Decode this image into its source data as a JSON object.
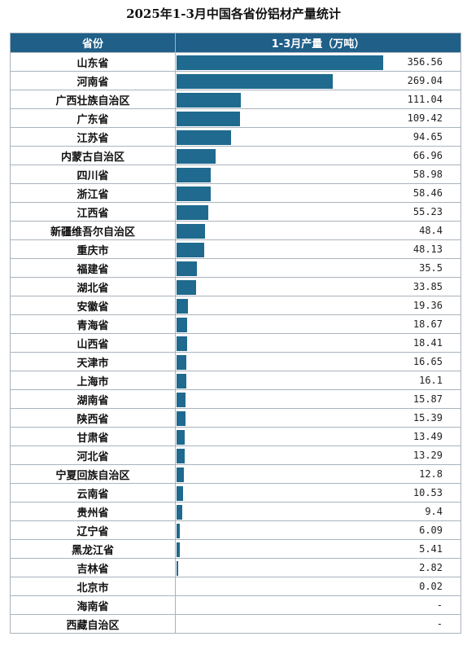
{
  "chart_data": {
    "type": "bar",
    "title": "2025年1-3月中国各省份铝材产量统计",
    "columns": [
      "省份",
      "1-3月产量（万吨）"
    ],
    "xlim": [
      0,
      356.56
    ],
    "categories": [
      "山东省",
      "河南省",
      "广西壮族自治区",
      "广东省",
      "江苏省",
      "内蒙古自治区",
      "四川省",
      "浙江省",
      "江西省",
      "新疆维吾尔自治区",
      "重庆市",
      "福建省",
      "湖北省",
      "安徽省",
      "青海省",
      "山西省",
      "天津市",
      "上海市",
      "湖南省",
      "陕西省",
      "甘肃省",
      "河北省",
      "宁夏回族自治区",
      "云南省",
      "贵州省",
      "辽宁省",
      "黑龙江省",
      "吉林省",
      "北京市",
      "海南省",
      "西藏自治区"
    ],
    "values": [
      356.56,
      269.04,
      111.04,
      109.42,
      94.65,
      66.96,
      58.98,
      58.46,
      55.23,
      48.4,
      48.13,
      35.5,
      33.85,
      19.36,
      18.67,
      18.41,
      16.65,
      16.1,
      15.87,
      15.39,
      13.49,
      13.29,
      12.8,
      10.53,
      9.4,
      6.09,
      5.41,
      2.82,
      0.02,
      null,
      null
    ],
    "labels": [
      "356.56",
      "269.04",
      "111.04",
      "109.42",
      "94.65",
      "66.96",
      "58.98",
      "58.46",
      "55.23",
      "48.4",
      "48.13",
      "35.5",
      "33.85",
      "19.36",
      "18.67",
      "18.41",
      "16.65",
      "16.1",
      "15.87",
      "15.39",
      "13.49",
      "13.29",
      "12.8",
      "10.53",
      "9.4",
      "6.09",
      "5.41",
      "2.82",
      "0.02",
      "-",
      "-"
    ],
    "colors": {
      "header": "#1f5f88",
      "bar": "#1f6a8e",
      "grid": "#a9b3bd"
    }
  }
}
